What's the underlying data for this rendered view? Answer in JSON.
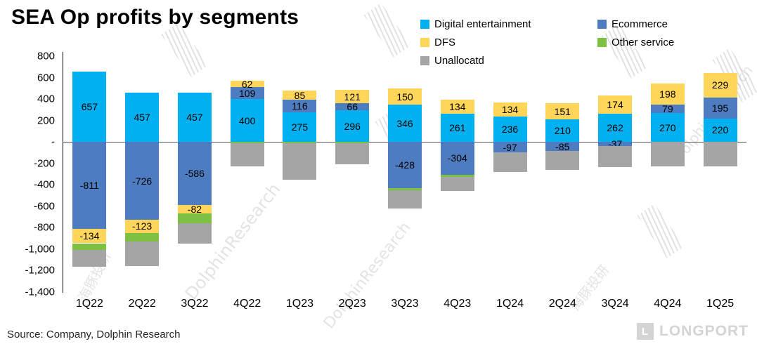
{
  "title": "SEA Op profits by segments",
  "source": "Source: Company, Dolphin Research",
  "watermarks": {
    "dolphin_cn": "海豚投研",
    "dolphin_en": "DolphinResearch",
    "longport": "LONGPORT",
    "longport_initial": "L"
  },
  "chart_data": {
    "type": "bar",
    "stacked": true,
    "title": "SEA Op profits by segments",
    "categories": [
      "1Q22",
      "2Q22",
      "3Q22",
      "4Q22",
      "1Q23",
      "2Q23",
      "3Q23",
      "4Q23",
      "1Q24",
      "2Q24",
      "3Q24",
      "4Q24",
      "1Q25"
    ],
    "series": [
      {
        "name": "Digital entertainment",
        "color": "#00B0F0",
        "show_labels": true,
        "values": [
          657,
          457,
          457,
          400,
          275,
          296,
          346,
          261,
          236,
          210,
          262,
          270,
          220
        ]
      },
      {
        "name": "Ecommerce",
        "color": "#4E7CC0",
        "show_labels": true,
        "values": [
          -811,
          -726,
          -586,
          109,
          116,
          66,
          -428,
          -304,
          -97,
          -85,
          -37,
          79,
          195
        ]
      },
      {
        "name": "DFS",
        "color": "#FFD659",
        "show_labels": true,
        "values": [
          -134,
          -123,
          -82,
          62,
          85,
          121,
          150,
          134,
          134,
          151,
          174,
          198,
          229
        ]
      },
      {
        "name": "Other service",
        "color": "#7CC142",
        "show_labels": false,
        "estimated_unlabeled": true,
        "values": [
          -60,
          -80,
          -90,
          -15,
          -10,
          -10,
          -25,
          -20,
          0,
          0,
          0,
          0,
          0
        ]
      },
      {
        "name": "Unallocatd",
        "color": "#A5A5A5",
        "show_labels": false,
        "estimated_unlabeled": true,
        "values": [
          -160,
          -230,
          -190,
          -215,
          -340,
          -200,
          -170,
          -130,
          -185,
          -175,
          -200,
          -230,
          -230
        ]
      }
    ],
    "ylim": [
      -1400,
      800
    ],
    "ytick_step": 200,
    "ytick_labels": [
      "800",
      "600",
      "400",
      "200",
      "-",
      "-200",
      "-400",
      "-600",
      "-800",
      "-1,000",
      "-1,200",
      "-1,400"
    ],
    "legend_position": "top-right",
    "grid": false,
    "xlabel": "",
    "ylabel": ""
  }
}
